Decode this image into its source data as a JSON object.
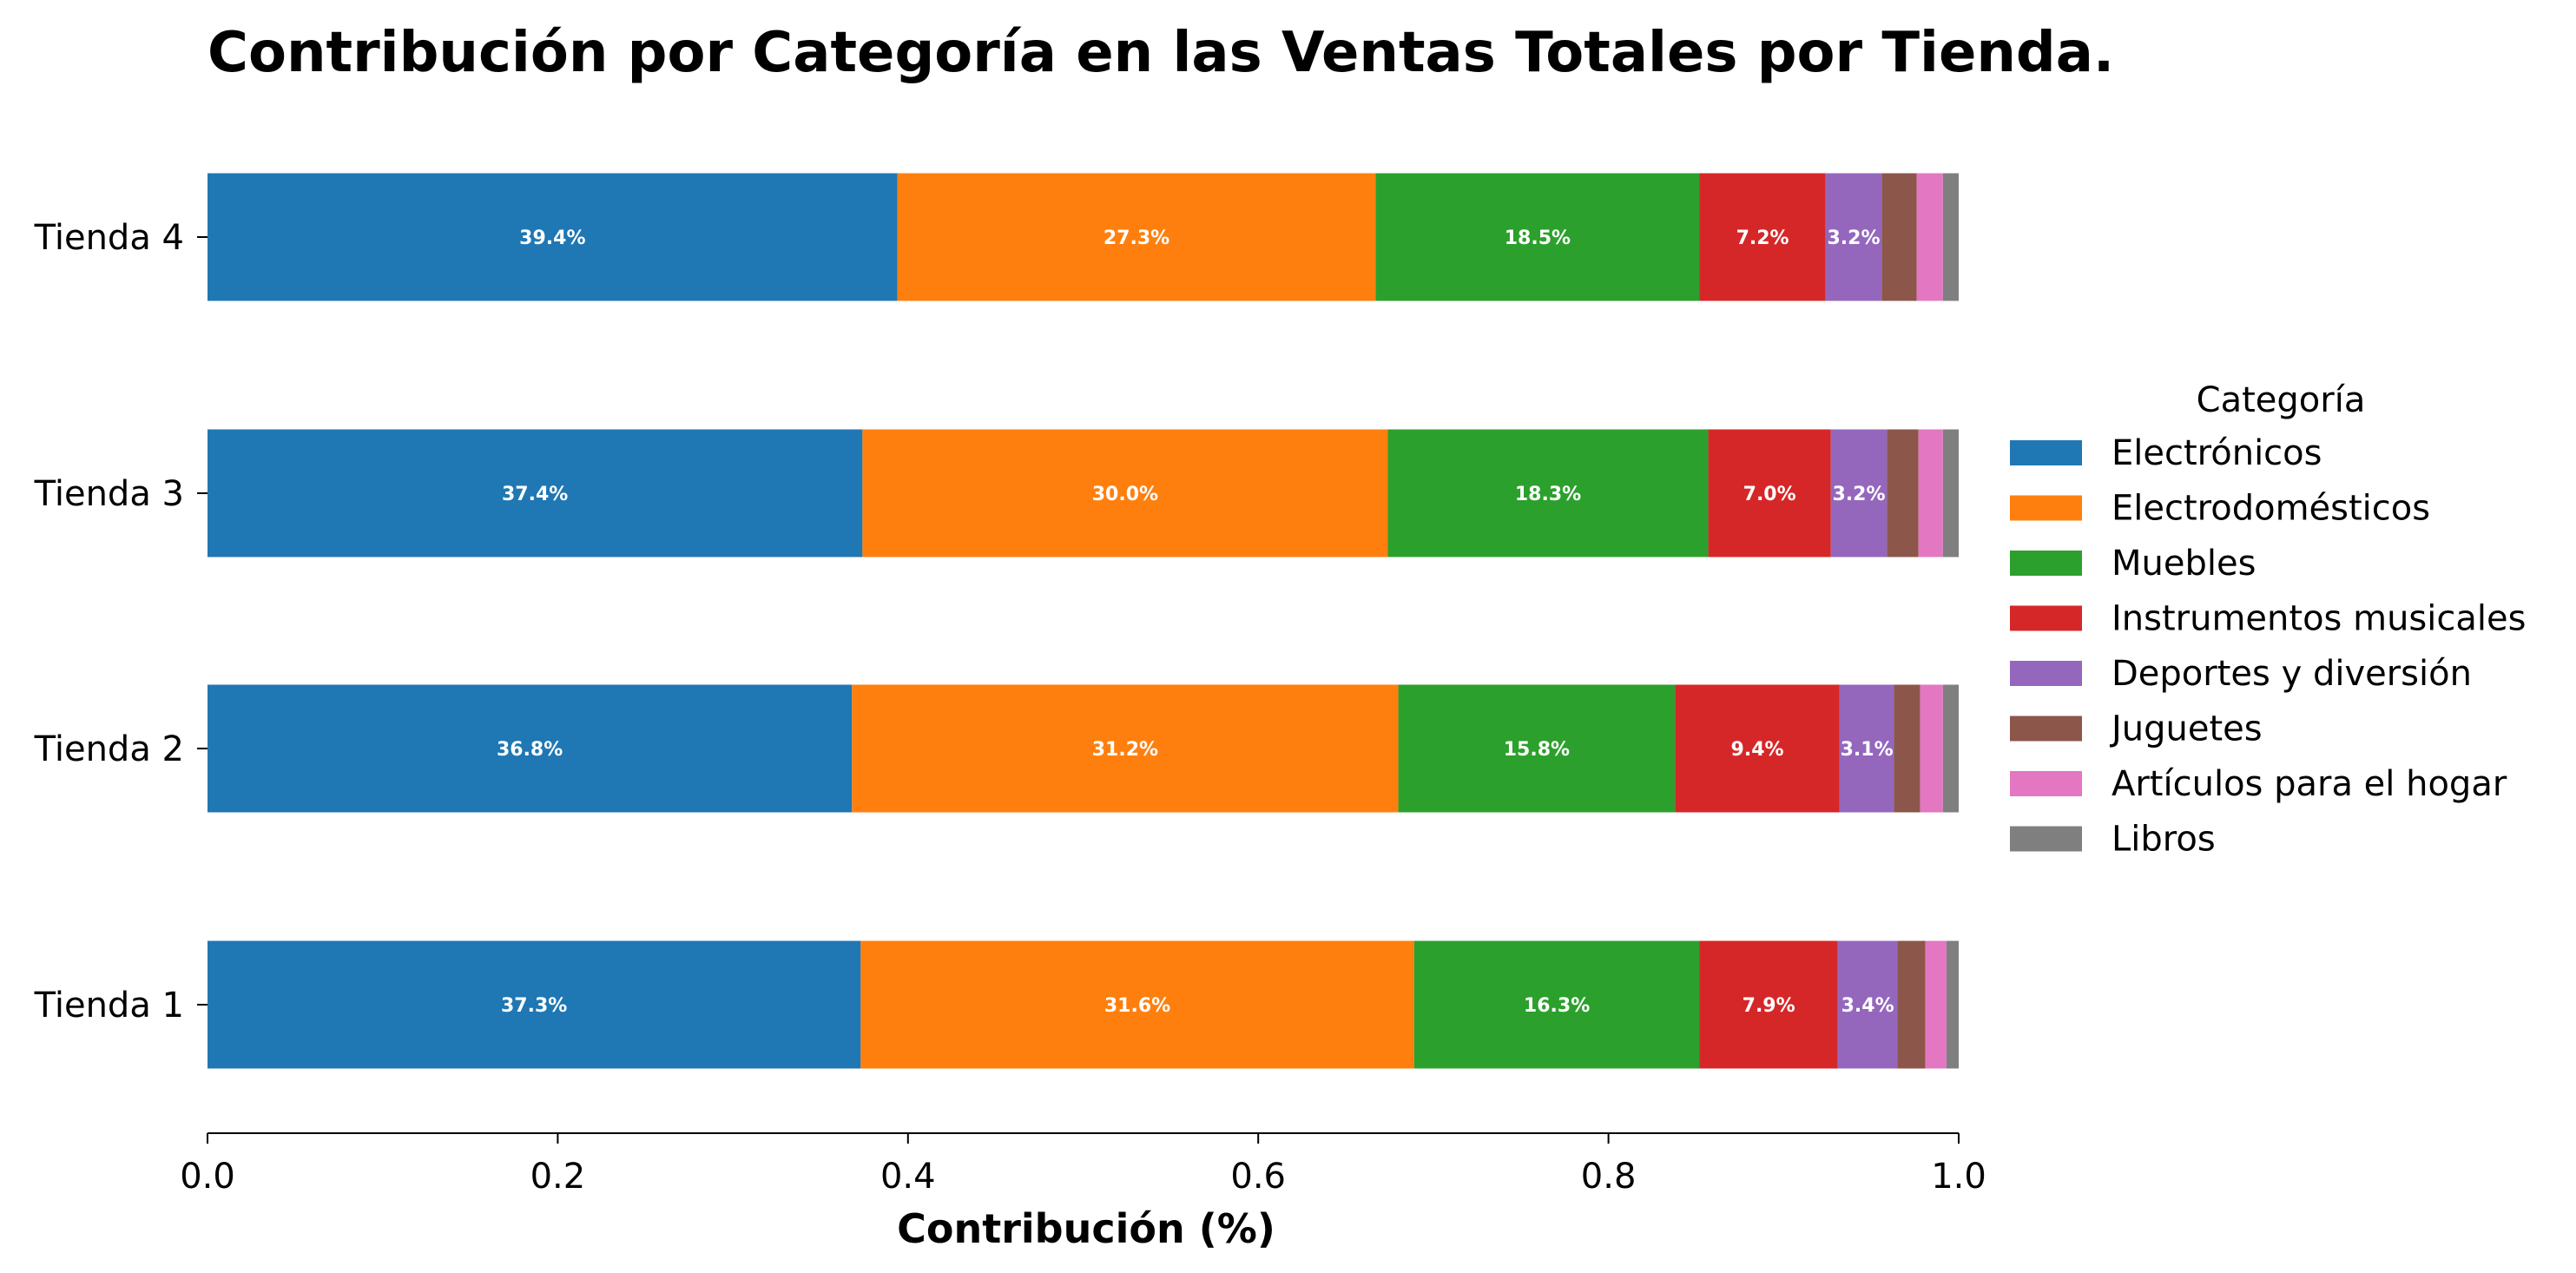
{
  "chart_data": {
    "type": "bar",
    "orientation": "horizontal",
    "stacked": true,
    "title": "Contribución por Categoría en las Ventas Totales por Tienda.",
    "xlabel": "Contribución (%)",
    "ylabel": "",
    "xlim": [
      0,
      1
    ],
    "x_ticks": [
      "0.0",
      "0.2",
      "0.4",
      "0.6",
      "0.8",
      "1.0"
    ],
    "categories": [
      "Tienda 4",
      "Tienda 3",
      "Tienda 2",
      "Tienda 1"
    ],
    "legend": {
      "title": "Categoría",
      "placement": "right"
    },
    "grid": false,
    "series": [
      {
        "name": "Electrónicos",
        "color": "#1f77b4",
        "values": [
          0.394,
          0.374,
          0.368,
          0.373
        ],
        "labels": [
          "39.4%",
          "37.4%",
          "36.8%",
          "37.3%"
        ]
      },
      {
        "name": "Electrodomésticos",
        "color": "#ff7f0e",
        "values": [
          0.273,
          0.3,
          0.312,
          0.316
        ],
        "labels": [
          "27.3%",
          "30.0%",
          "31.2%",
          "31.6%"
        ]
      },
      {
        "name": "Muebles",
        "color": "#2ca02c",
        "values": [
          0.185,
          0.183,
          0.158,
          0.163
        ],
        "labels": [
          "18.5%",
          "18.3%",
          "15.8%",
          "16.3%"
        ]
      },
      {
        "name": "Instrumentos musicales",
        "color": "#d62728",
        "values": [
          0.072,
          0.07,
          0.094,
          0.079
        ],
        "labels": [
          "7.2%",
          "7.0%",
          "9.4%",
          "7.9%"
        ]
      },
      {
        "name": "Deportes y diversión",
        "color": "#9467bd",
        "values": [
          0.032,
          0.032,
          0.031,
          0.034
        ],
        "labels": [
          "3.2%",
          "3.2%",
          "3.1%",
          "3.4%"
        ]
      },
      {
        "name": "Juguetes",
        "color": "#8c564b",
        "values": [
          0.02,
          0.018,
          0.015,
          0.016
        ],
        "labels": [
          "",
          "",
          "",
          ""
        ]
      },
      {
        "name": "Artículos para el hogar",
        "color": "#e377c2",
        "values": [
          0.015,
          0.014,
          0.013,
          0.012
        ],
        "labels": [
          "",
          "",
          "",
          ""
        ]
      },
      {
        "name": "Libros",
        "color": "#7f7f7f",
        "values": [
          0.009,
          0.009,
          0.009,
          0.007
        ],
        "labels": [
          "",
          "",
          "",
          ""
        ]
      }
    ]
  }
}
